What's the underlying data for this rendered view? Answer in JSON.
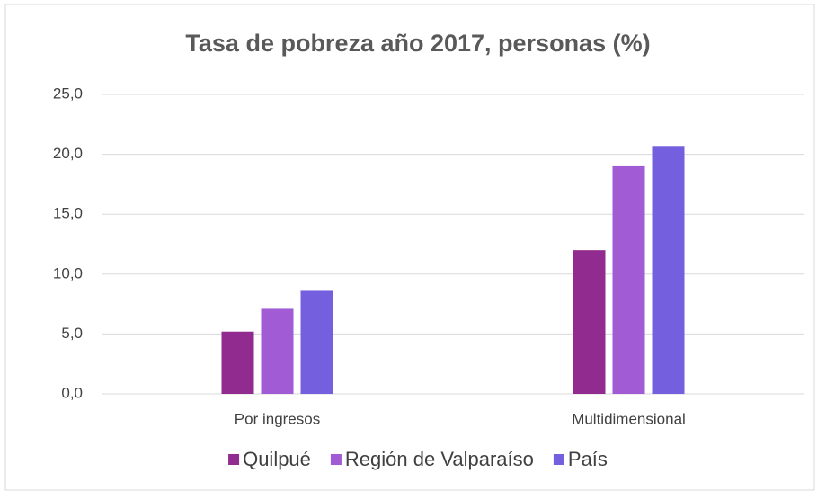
{
  "chart_data": {
    "type": "bar",
    "title": "Tasa de pobreza año 2017, personas (%)",
    "categories": [
      "Por ingresos",
      "Multidimensional"
    ],
    "series": [
      {
        "name": "Quilpué",
        "color": "#922b8f",
        "values": [
          5.2,
          12.0
        ]
      },
      {
        "name": "Región de Valparaíso",
        "color": "#a05bd5",
        "values": [
          7.1,
          19.0
        ]
      },
      {
        "name": "País",
        "color": "#745fde",
        "values": [
          8.6,
          20.7
        ]
      }
    ],
    "ylim": [
      0,
      25
    ],
    "yticks": [
      {
        "value": 0,
        "label": "0,0"
      },
      {
        "value": 5,
        "label": "5,0"
      },
      {
        "value": 10,
        "label": "10,0"
      },
      {
        "value": 15,
        "label": "15,0"
      },
      {
        "value": 20,
        "label": "20,0"
      },
      {
        "value": 25,
        "label": "25,0"
      }
    ],
    "grid": true,
    "legend": "bottom"
  }
}
